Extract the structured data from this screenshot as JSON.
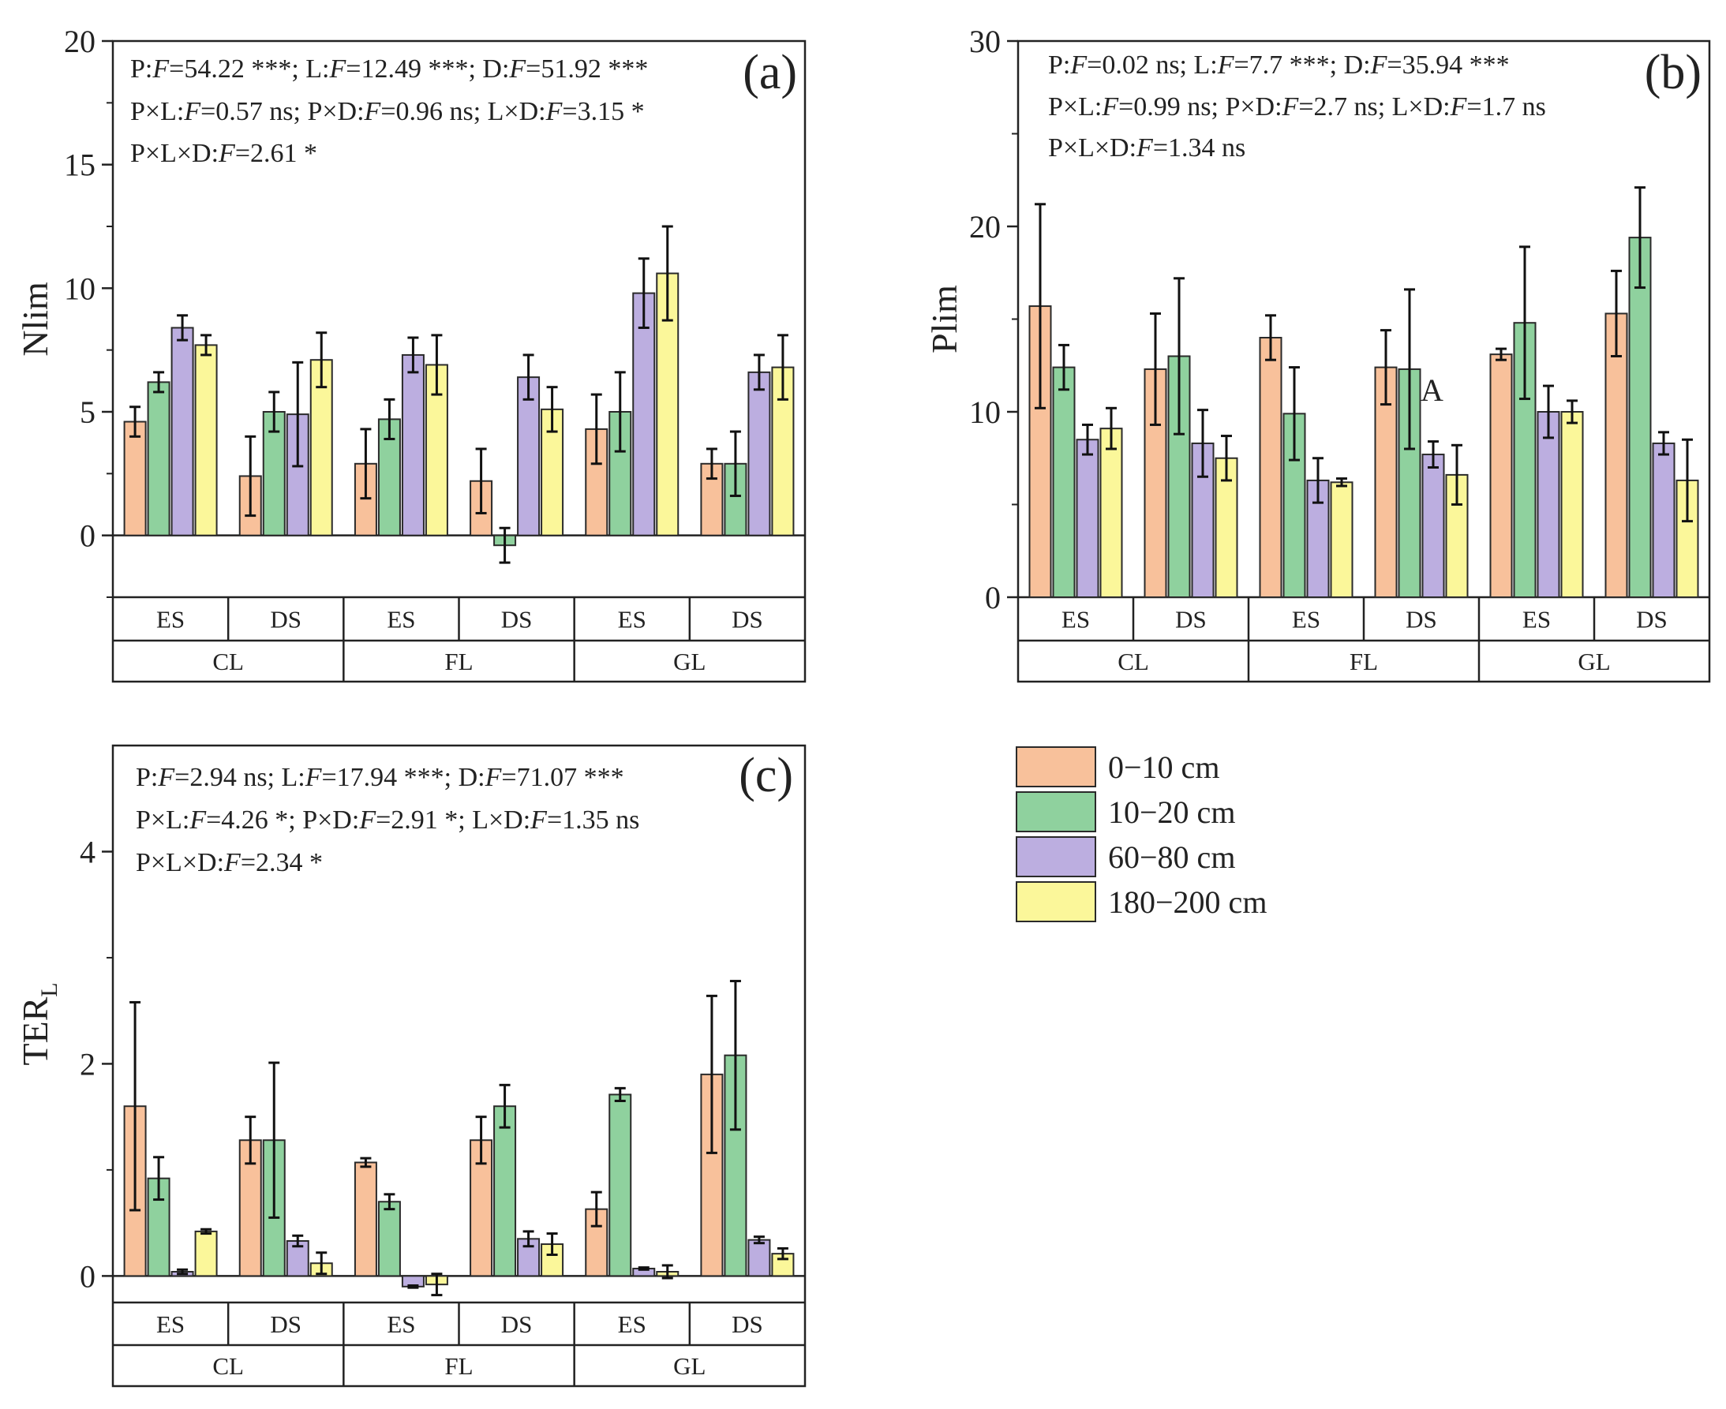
{
  "colors": {
    "0-10": "#f8c19b",
    "10-20": "#8fd19e",
    "60-80": "#bcaee0",
    "180-200": "#fbf79a"
  },
  "legend": {
    "entries": [
      {
        "key": "0-10",
        "label": "0−10 cm"
      },
      {
        "key": "10-20",
        "label": "10−20 cm"
      },
      {
        "key": "60-80",
        "label": "60−80 cm"
      },
      {
        "key": "180-200",
        "label": "180−200 cm"
      }
    ]
  },
  "chart_data": [
    {
      "type": "bar",
      "id": "a",
      "panel_label": "(a)",
      "ylabel": "Nlim",
      "ylabel_sub": "",
      "ylim": [
        -2.5,
        20
      ],
      "yticks": [
        0,
        5,
        10,
        15,
        20
      ],
      "stats": [
        [
          {
            "t": "P:"
          },
          {
            "t": "F",
            "i": true
          },
          {
            "t": "=54.22 ***; L:"
          },
          {
            "t": "F",
            "i": true
          },
          {
            "t": "=12.49 ***; D:"
          },
          {
            "t": "F",
            "i": true
          },
          {
            "t": "=51.92 ***"
          }
        ],
        [
          {
            "t": "P×L:"
          },
          {
            "t": "F",
            "i": true
          },
          {
            "t": "=0.57 ns; P×D:"
          },
          {
            "t": "F",
            "i": true
          },
          {
            "t": "=0.96 ns; L×D:"
          },
          {
            "t": "F",
            "i": true
          },
          {
            "t": "=3.15 *"
          }
        ],
        [
          {
            "t": "P×L×D:"
          },
          {
            "t": "F",
            "i": true
          },
          {
            "t": "=2.61 *"
          }
        ]
      ],
      "seasons": [
        "ES",
        "DS",
        "ES",
        "DS",
        "ES",
        "DS"
      ],
      "land_uses": [
        "CL",
        "FL",
        "GL"
      ],
      "depths": [
        "0-10",
        "10-20",
        "60-80",
        "180-200"
      ],
      "values": [
        [
          4.6,
          6.2,
          8.4,
          7.7
        ],
        [
          2.4,
          5.0,
          4.9,
          7.1
        ],
        [
          2.9,
          4.7,
          7.3,
          6.9
        ],
        [
          2.2,
          -0.4,
          6.4,
          5.1
        ],
        [
          4.3,
          5.0,
          9.8,
          10.6
        ],
        [
          2.9,
          2.9,
          6.6,
          6.8
        ]
      ],
      "errors": [
        [
          0.6,
          0.4,
          0.5,
          0.4
        ],
        [
          1.6,
          0.8,
          2.1,
          1.1
        ],
        [
          1.4,
          0.8,
          0.7,
          1.2
        ],
        [
          1.3,
          0.7,
          0.9,
          0.9
        ],
        [
          1.4,
          1.6,
          1.4,
          1.9
        ],
        [
          0.6,
          1.3,
          0.7,
          1.3
        ]
      ],
      "annotations": []
    },
    {
      "type": "bar",
      "id": "b",
      "panel_label": "(b)",
      "ylabel": "Plim",
      "ylabel_sub": "",
      "ylim": [
        0,
        30
      ],
      "yticks": [
        0,
        10,
        20,
        30
      ],
      "stats": [
        [
          {
            "t": "P:"
          },
          {
            "t": "F",
            "i": true
          },
          {
            "t": "=0.02 ns; L:"
          },
          {
            "t": "F",
            "i": true
          },
          {
            "t": "=7.7 ***; D:"
          },
          {
            "t": "F",
            "i": true
          },
          {
            "t": "=35.94 ***"
          }
        ],
        [
          {
            "t": "P×L:"
          },
          {
            "t": "F",
            "i": true
          },
          {
            "t": "=0.99 ns; P×D:"
          },
          {
            "t": "F",
            "i": true
          },
          {
            "t": "=2.7 ns; L×D:"
          },
          {
            "t": "F",
            "i": true
          },
          {
            "t": "=1.7 ns"
          }
        ],
        [
          {
            "t": "P×L×D:"
          },
          {
            "t": "F",
            "i": true
          },
          {
            "t": "=1.34 ns"
          }
        ]
      ],
      "seasons": [
        "ES",
        "DS",
        "ES",
        "DS",
        "ES",
        "DS"
      ],
      "land_uses": [
        "CL",
        "FL",
        "GL"
      ],
      "depths": [
        "0-10",
        "10-20",
        "60-80",
        "180-200"
      ],
      "values": [
        [
          15.7,
          12.4,
          8.5,
          9.1
        ],
        [
          12.3,
          13.0,
          8.3,
          7.5
        ],
        [
          14.0,
          9.9,
          6.3,
          6.2
        ],
        [
          12.4,
          12.3,
          7.7,
          6.6
        ],
        [
          13.1,
          14.8,
          10.0,
          10.0
        ],
        [
          15.3,
          19.4,
          8.3,
          6.3
        ]
      ],
      "errors": [
        [
          5.5,
          1.2,
          0.8,
          1.1
        ],
        [
          3.0,
          4.2,
          1.8,
          1.2
        ],
        [
          1.2,
          2.5,
          1.2,
          0.2
        ],
        [
          2.0,
          4.3,
          0.7,
          1.6
        ],
        [
          0.3,
          4.1,
          1.4,
          0.6
        ],
        [
          2.3,
          2.7,
          0.6,
          2.2
        ]
      ],
      "annotations": [
        {
          "text": "A",
          "group": 3,
          "depth": 1,
          "value": 11.2
        }
      ]
    },
    {
      "type": "bar",
      "id": "c",
      "panel_label": "(c)",
      "ylabel": "TER",
      "ylabel_sub": "L",
      "ylim": [
        -0.25,
        5.0
      ],
      "yticks": [
        0,
        2,
        4
      ],
      "stats": [
        [
          {
            "t": "P:"
          },
          {
            "t": "F",
            "i": true
          },
          {
            "t": "=2.94 ns; L:"
          },
          {
            "t": "F",
            "i": true
          },
          {
            "t": "=17.94 ***; D:"
          },
          {
            "t": "F",
            "i": true
          },
          {
            "t": "=71.07 ***"
          }
        ],
        [
          {
            "t": "P×L:"
          },
          {
            "t": "F",
            "i": true
          },
          {
            "t": "=4.26 *; P×D:"
          },
          {
            "t": "F",
            "i": true
          },
          {
            "t": "=2.91 *; L×D:"
          },
          {
            "t": "F",
            "i": true
          },
          {
            "t": "=1.35 ns"
          }
        ],
        [
          {
            "t": "P×L×D:"
          },
          {
            "t": "F",
            "i": true
          },
          {
            "t": "=2.34 *"
          }
        ]
      ],
      "seasons": [
        "ES",
        "DS",
        "ES",
        "DS",
        "ES",
        "DS"
      ],
      "land_uses": [
        "CL",
        "FL",
        "GL"
      ],
      "depths": [
        "0-10",
        "10-20",
        "60-80",
        "180-200"
      ],
      "values": [
        [
          1.6,
          0.92,
          0.04,
          0.42
        ],
        [
          1.28,
          1.28,
          0.33,
          0.12
        ],
        [
          1.07,
          0.7,
          -0.1,
          -0.08
        ],
        [
          1.28,
          1.6,
          0.35,
          0.3
        ],
        [
          0.63,
          1.71,
          0.07,
          0.04
        ],
        [
          1.9,
          2.08,
          0.34,
          0.21
        ]
      ],
      "errors": [
        [
          0.98,
          0.2,
          0.02,
          0.02
        ],
        [
          0.22,
          0.73,
          0.05,
          0.1
        ],
        [
          0.04,
          0.07,
          0.01,
          0.1
        ],
        [
          0.22,
          0.2,
          0.07,
          0.1
        ],
        [
          0.16,
          0.06,
          0.01,
          0.06
        ],
        [
          0.74,
          0.7,
          0.03,
          0.05
        ]
      ],
      "annotations": []
    }
  ]
}
